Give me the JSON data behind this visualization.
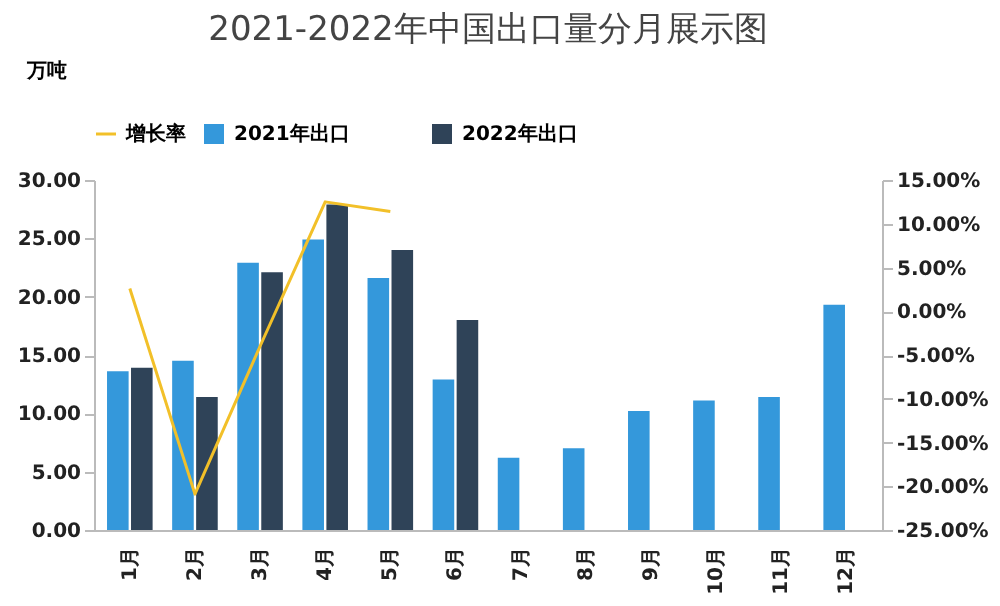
{
  "chart_data": {
    "type": "bar",
    "title": "2021-2022年中国出口量分月展示图",
    "ylabel": "万吨",
    "categories": [
      "1月",
      "2月",
      "3月",
      "4月",
      "5月",
      "6月",
      "7月",
      "8月",
      "9月",
      "10月",
      "11月",
      "12月"
    ],
    "series": [
      {
        "name": "2021年出口",
        "color": "#3498db",
        "values": [
          13.6,
          14.5,
          22.9,
          24.9,
          21.6,
          12.9,
          6.2,
          7.0,
          10.2,
          11.1,
          11.4,
          19.3
        ]
      },
      {
        "name": "2022年出口",
        "color": "#2f4358",
        "values": [
          13.9,
          11.4,
          22.1,
          27.9,
          24.0,
          18.0,
          null,
          null,
          null,
          null,
          null,
          null
        ]
      },
      {
        "name": "增长率",
        "type": "line",
        "axis": "y2",
        "color": "#f2c029",
        "values": [
          2.6,
          -20.9,
          -4.0,
          12.5,
          11.4,
          null,
          null,
          null,
          null,
          null,
          null,
          null
        ]
      }
    ],
    "ylim": [
      0,
      30
    ],
    "yticks": [
      {
        "value": 0,
        "label": "0.00"
      },
      {
        "value": 5,
        "label": "5.00"
      },
      {
        "value": 10,
        "label": "10.00"
      },
      {
        "value": 15,
        "label": "15.00"
      },
      {
        "value": 20,
        "label": "20.00"
      },
      {
        "value": 25,
        "label": "25.00"
      },
      {
        "value": 30,
        "label": "30.00"
      }
    ],
    "y2lim": [
      -25,
      15
    ],
    "y2ticks": [
      {
        "value": -25,
        "label": "-25.00%"
      },
      {
        "value": -20,
        "label": "-20.00%"
      },
      {
        "value": -15,
        "label": "-15.00%"
      },
      {
        "value": -10,
        "label": "-10.00%"
      },
      {
        "value": -5,
        "label": "-5.00%"
      },
      {
        "value": 0,
        "label": "0.00%"
      },
      {
        "value": 5,
        "label": "5.00%"
      },
      {
        "value": 10,
        "label": "10.00%"
      },
      {
        "value": 15,
        "label": "15.00%"
      }
    ],
    "legend": "top",
    "grid": false
  }
}
